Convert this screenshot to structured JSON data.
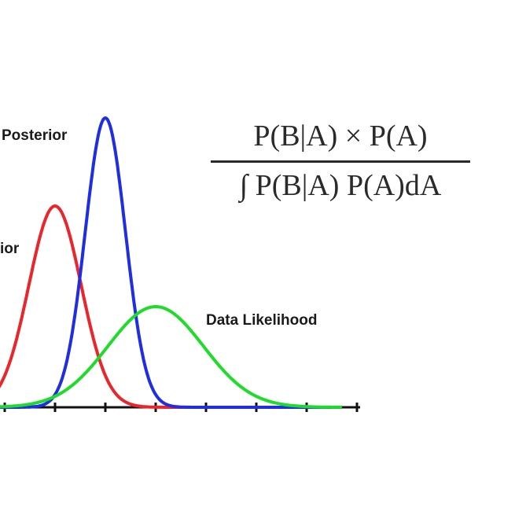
{
  "labels": {
    "posterior": "Posterior",
    "prior": "ior",
    "likelihood": "Data Likelihood"
  },
  "formula": {
    "numerator": "P(B|A) × P(A)",
    "denominator": "∫ P(B|A) P(A)dA"
  },
  "colors": {
    "prior": "#e8262b",
    "posterior": "#1f2ee0",
    "likelihood": "#1fdc2a",
    "axis": "#111111"
  },
  "curves": [
    {
      "name": "prior",
      "mean": 0.0,
      "sd": 0.52,
      "peak": 0.64
    },
    {
      "name": "posterior",
      "mean": 1.0,
      "sd": 0.4,
      "peak": 0.92
    },
    {
      "name": "likelihood",
      "mean": 2.0,
      "sd": 0.95,
      "peak": 0.32
    }
  ]
}
